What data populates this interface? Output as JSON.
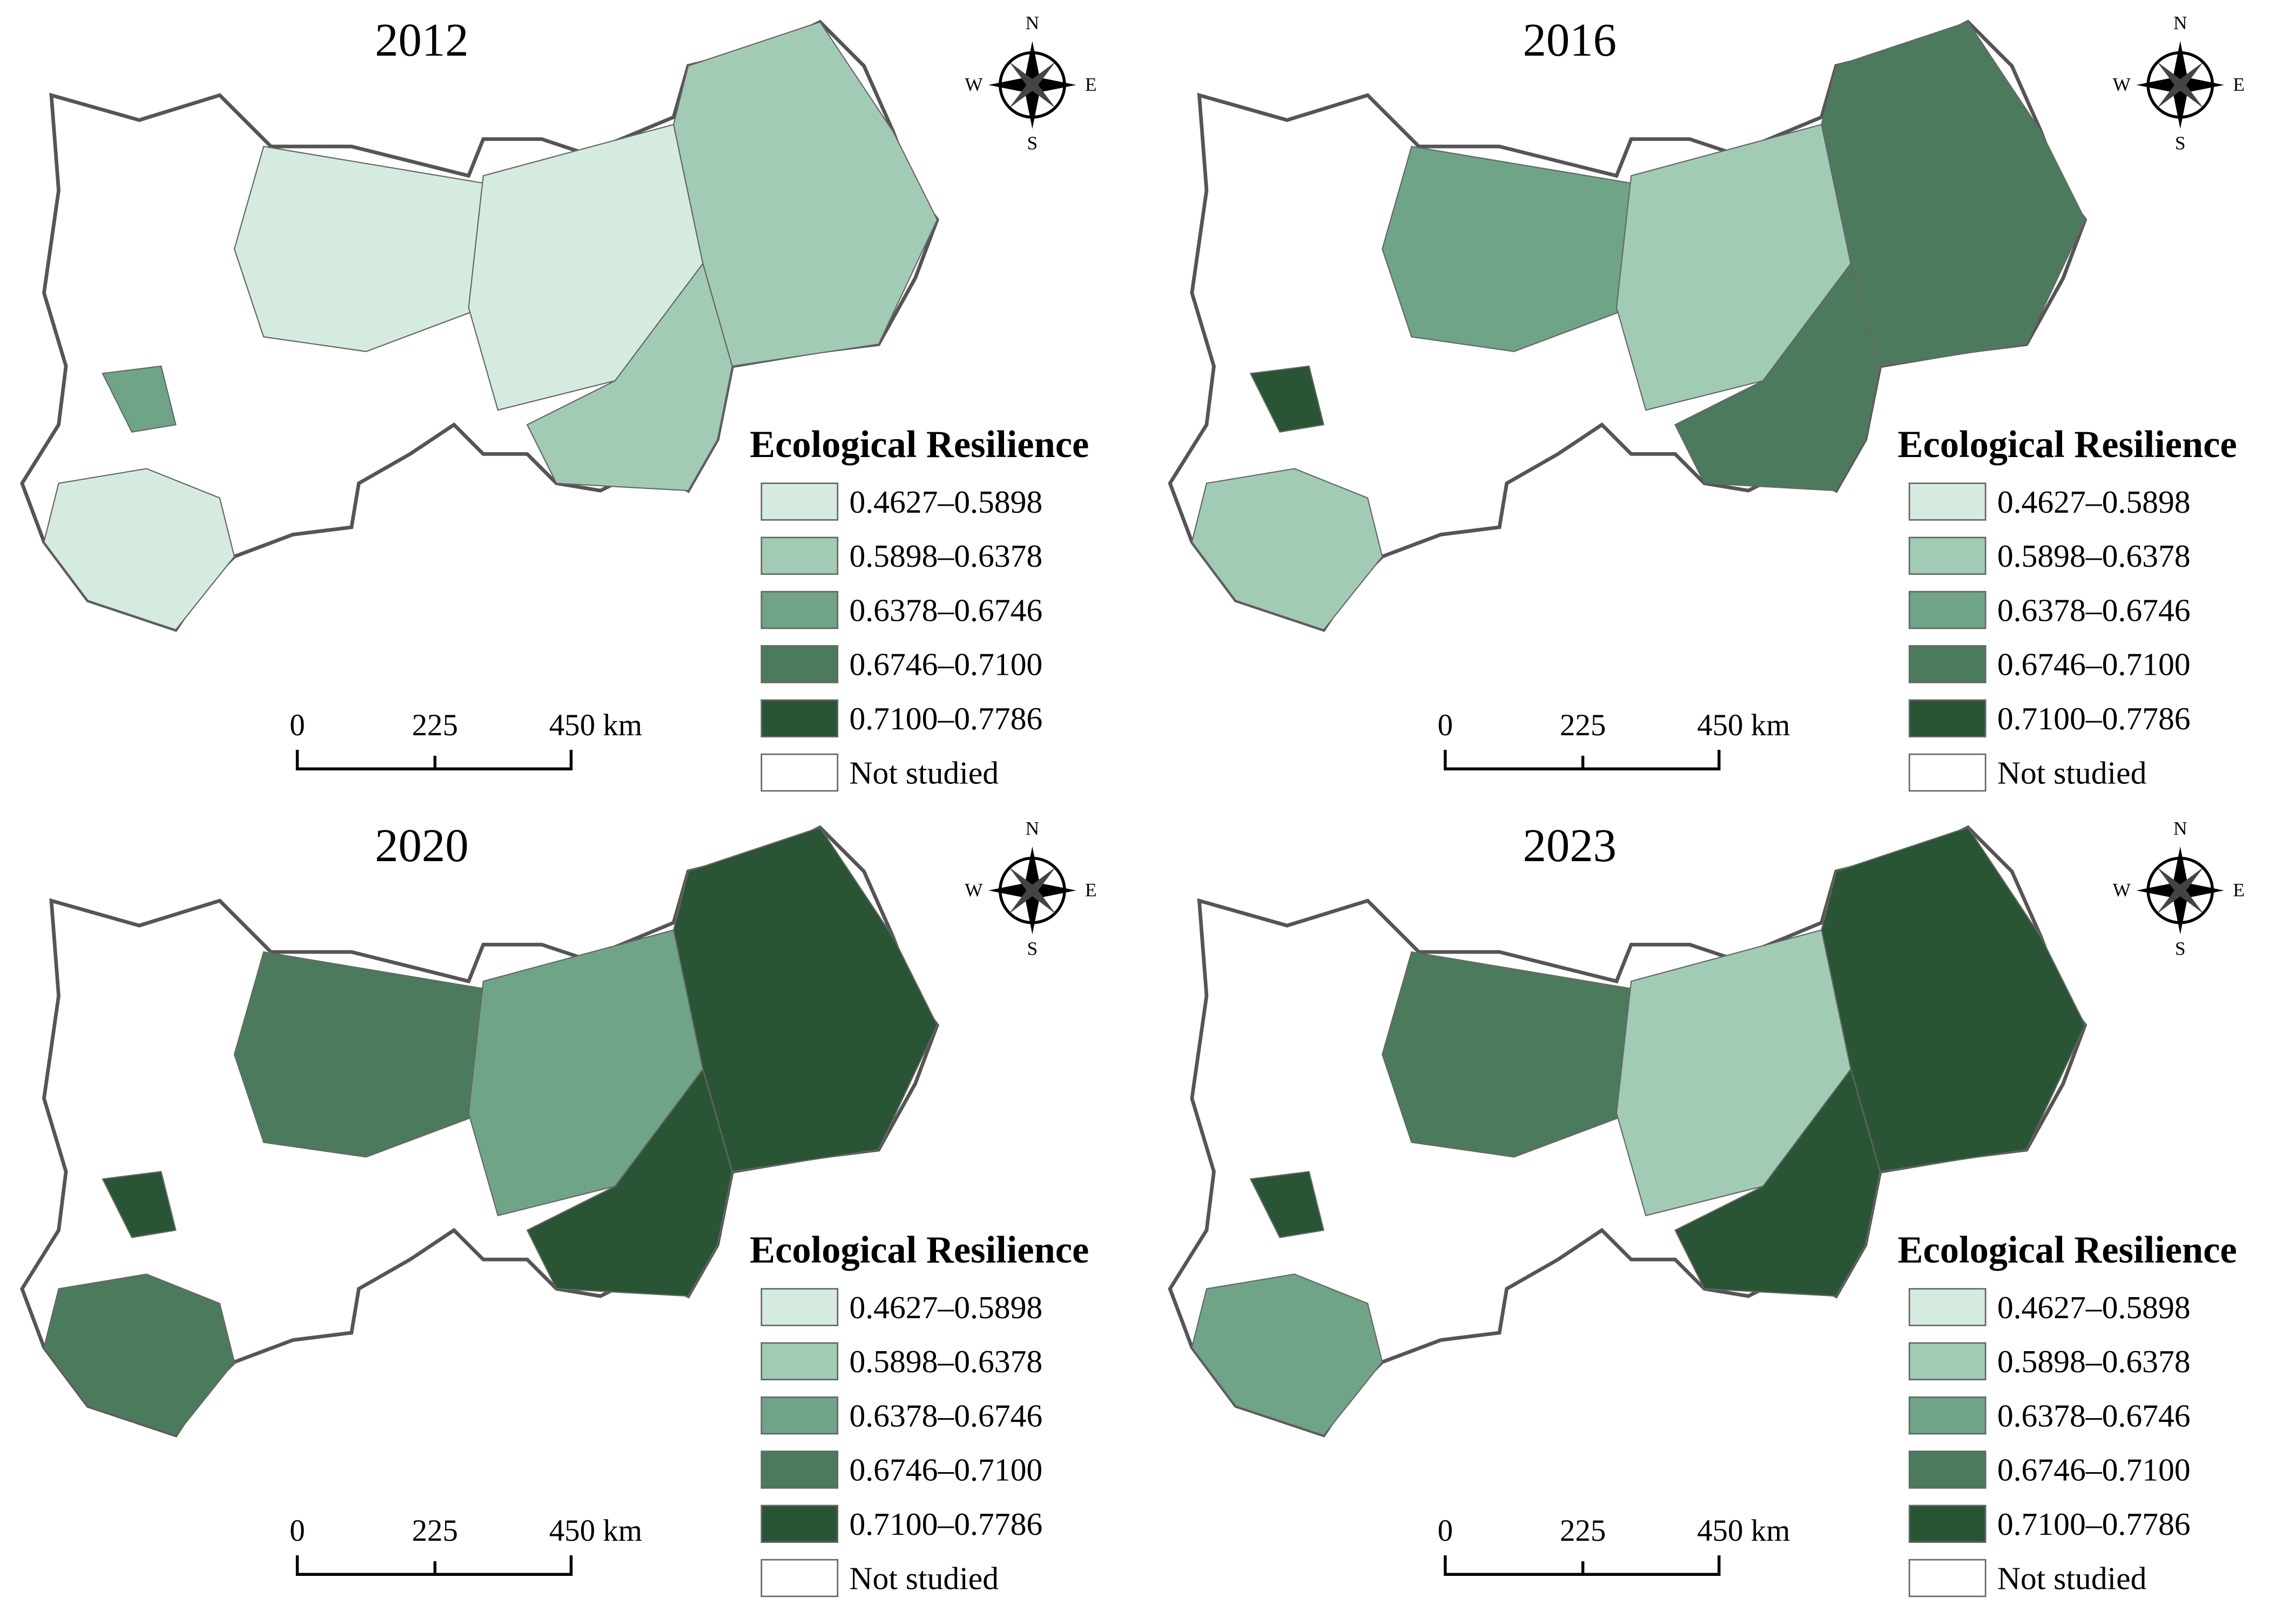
{
  "legend_colors": [
    "#d5ebe0",
    "#a2cbb5",
    "#6fa488",
    "#4b7b5c",
    "#2a5535"
  ],
  "panels": [
    {
      "year": "2012",
      "legend_title": "Ecological Resilience",
      "legend": [
        "0.4627–0.5898",
        "0.5898–0.6378",
        "0.6378–0.6746",
        "0.6746–0.7100",
        "0.7100–0.7786",
        "Not studied"
      ],
      "scale_labels": [
        "0",
        "225",
        "450 km"
      ],
      "compass": [
        "N",
        "S",
        "W",
        "E"
      ]
    },
    {
      "year": "2016",
      "legend_title": "Ecological Resilience",
      "legend": [
        "0.4627–0.5898",
        "0.5898–0.6378",
        "0.6378–0.6746",
        "0.6746–0.7100",
        "0.7100–0.7786",
        "Not studied"
      ],
      "scale_labels": [
        "0",
        "225",
        "450 km"
      ],
      "compass": [
        "N",
        "S",
        "W",
        "E"
      ]
    },
    {
      "year": "2020",
      "legend_title": "Ecological Resilience",
      "legend": [
        "0.4627–0.5898",
        "0.5898–0.6378",
        "0.6378–0.6746",
        "0.6746–0.7100",
        "0.7100–0.7786",
        "Not studied"
      ],
      "scale_labels": [
        "0",
        "225",
        "450 km"
      ],
      "compass": [
        "N",
        "S",
        "W",
        "E"
      ]
    },
    {
      "year": "2023",
      "legend_title": "Ecological Resilience",
      "legend": [
        "0.4627–0.5898",
        "0.5898–0.6378",
        "0.6378–0.6746",
        "0.6746–0.7100",
        "0.7100–0.7786",
        "Not studied"
      ],
      "scale_labels": [
        "0",
        "225",
        "450 km"
      ],
      "compass": [
        "N",
        "S",
        "W",
        "E"
      ]
    }
  ]
}
